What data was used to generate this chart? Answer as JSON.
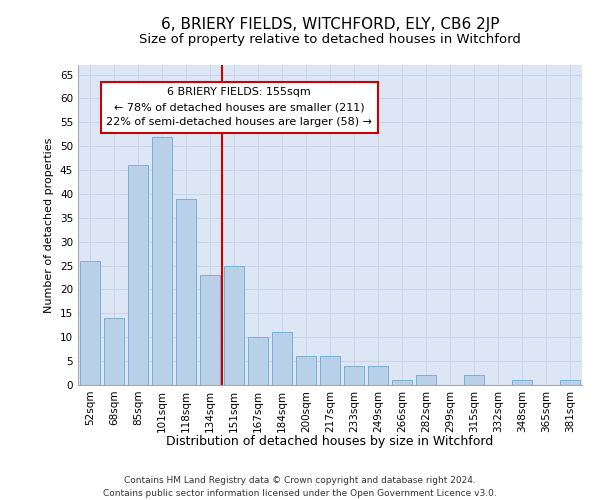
{
  "title1": "6, BRIERY FIELDS, WITCHFORD, ELY, CB6 2JP",
  "title2": "Size of property relative to detached houses in Witchford",
  "xlabel": "Distribution of detached houses by size in Witchford",
  "ylabel": "Number of detached properties",
  "categories": [
    "52sqm",
    "68sqm",
    "85sqm",
    "101sqm",
    "118sqm",
    "134sqm",
    "151sqm",
    "167sqm",
    "184sqm",
    "200sqm",
    "217sqm",
    "233sqm",
    "249sqm",
    "266sqm",
    "282sqm",
    "299sqm",
    "315sqm",
    "332sqm",
    "348sqm",
    "365sqm",
    "381sqm"
  ],
  "values": [
    26,
    14,
    46,
    52,
    39,
    23,
    25,
    10,
    11,
    6,
    6,
    4,
    4,
    1,
    2,
    0,
    2,
    0,
    1,
    0,
    1
  ],
  "bar_color": "#b8d0e8",
  "bar_edge_color": "#7aafd4",
  "grid_color": "#c8d4e8",
  "background_color": "#dce6f5",
  "vline_color": "#cc0000",
  "vline_index": 6,
  "annotation_box_text": "6 BRIERY FIELDS: 155sqm\n← 78% of detached houses are smaller (211)\n22% of semi-detached houses are larger (58) →",
  "footer_line1": "Contains HM Land Registry data © Crown copyright and database right 2024.",
  "footer_line2": "Contains public sector information licensed under the Open Government Licence v3.0.",
  "ylim": [
    0,
    67
  ],
  "yticks": [
    0,
    5,
    10,
    15,
    20,
    25,
    30,
    35,
    40,
    45,
    50,
    55,
    60,
    65
  ],
  "title1_fontsize": 11,
  "title2_fontsize": 9.5,
  "ylabel_fontsize": 8,
  "xlabel_fontsize": 9,
  "tick_fontsize": 7.5,
  "annotation_fontsize": 8,
  "footer_fontsize": 6.5
}
